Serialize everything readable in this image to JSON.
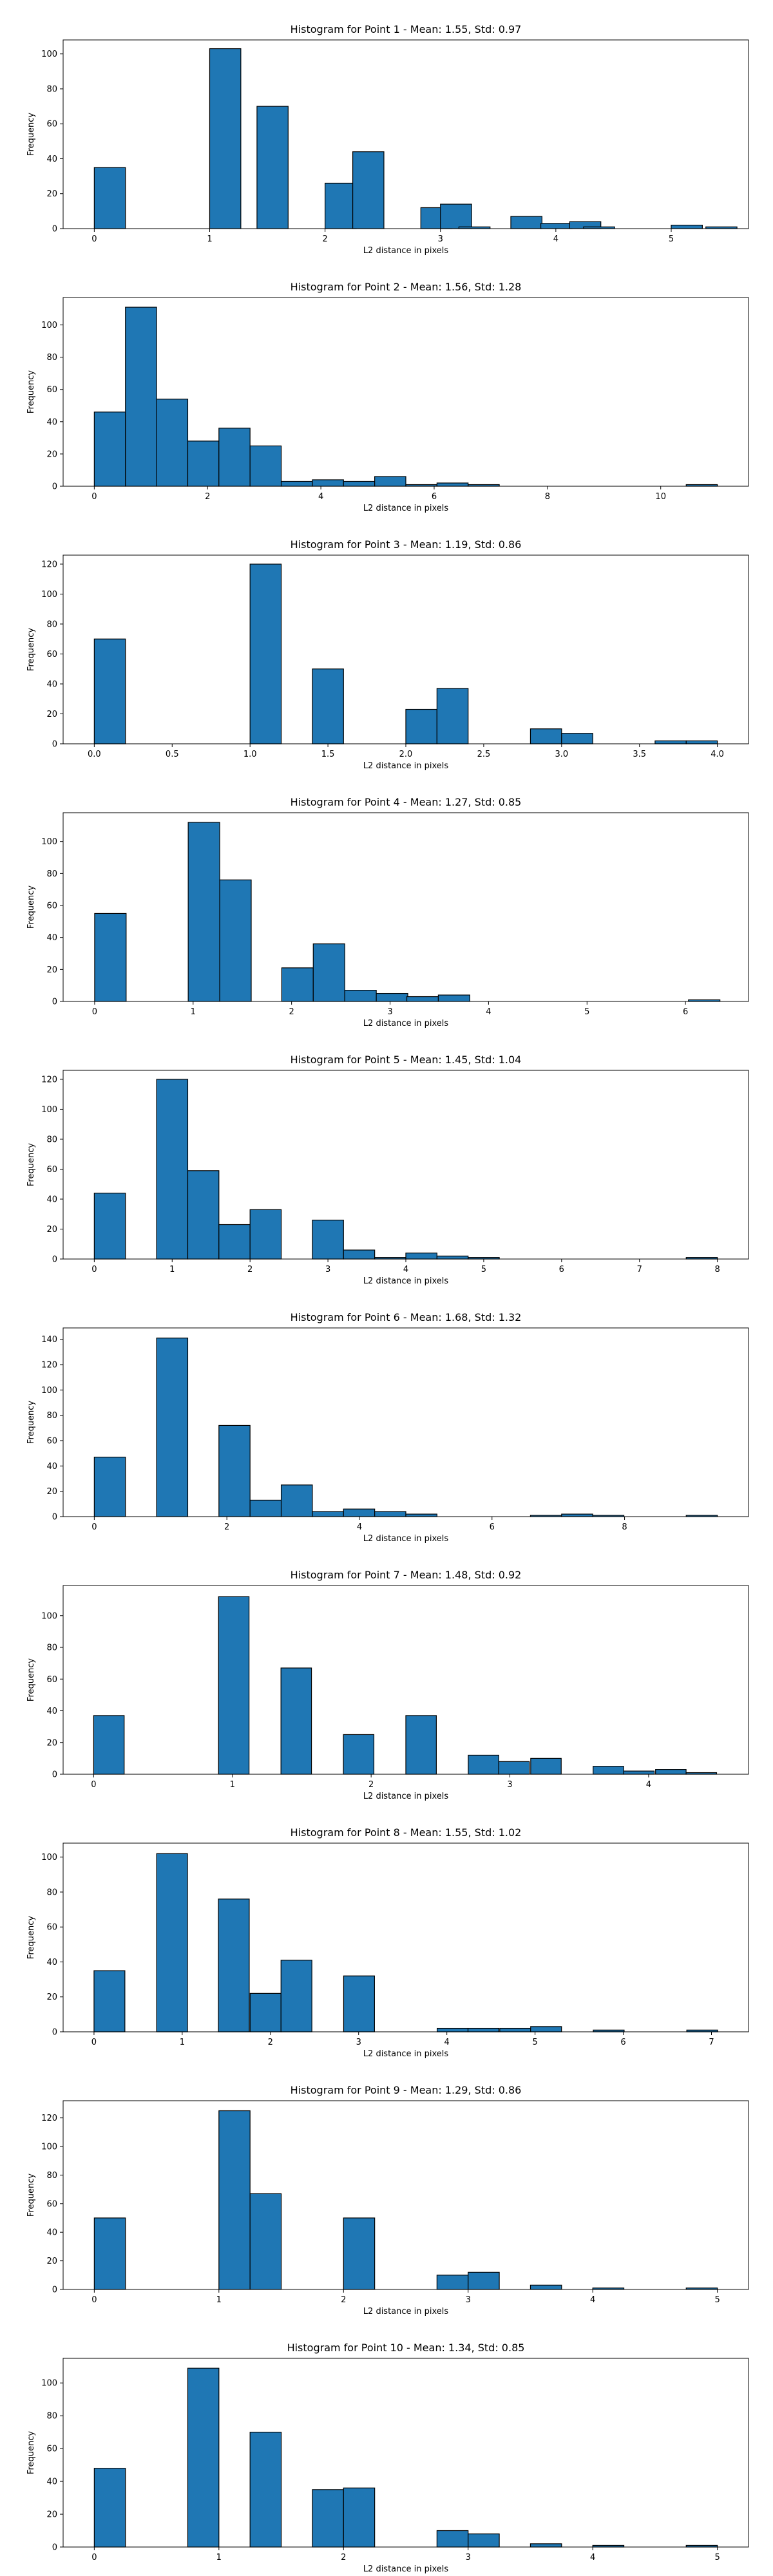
{
  "chart_data": [
    {
      "type": "bar",
      "title": "Histogram for Point 1 - Mean: 1.55, Std: 0.97",
      "xlabel": "L2 distance in pixels",
      "ylabel": "Frequency",
      "xlim": [
        -0.27,
        5.67
      ],
      "ylim": [
        0,
        108
      ],
      "xticks": [
        0,
        1,
        2,
        3,
        4,
        5
      ],
      "yticks": [
        0,
        20,
        40,
        60,
        80,
        100
      ],
      "bin_width": 0.27,
      "bins": [
        [
          0,
          35
        ],
        [
          1,
          103
        ],
        [
          1.41,
          70
        ],
        [
          2,
          26
        ],
        [
          2.24,
          44
        ],
        [
          2.83,
          12
        ],
        [
          3,
          14
        ],
        [
          3.16,
          1
        ],
        [
          3.61,
          7
        ],
        [
          3.87,
          3
        ],
        [
          4.12,
          4
        ],
        [
          4.24,
          1
        ],
        [
          5,
          2
        ],
        [
          5.3,
          1
        ]
      ]
    },
    {
      "type": "bar",
      "title": "Histogram for Point 2 - Mean: 1.56, Std: 1.28",
      "xlabel": "L2 distance in pixels",
      "ylabel": "Frequency",
      "xlim": [
        -0.55,
        11.55
      ],
      "ylim": [
        0,
        117
      ],
      "xticks": [
        0,
        2,
        4,
        6,
        8,
        10
      ],
      "yticks": [
        0,
        20,
        40,
        60,
        80,
        100
      ],
      "bin_width": 0.55,
      "bins": [
        [
          0,
          46
        ],
        [
          0.55,
          111
        ],
        [
          1.1,
          54
        ],
        [
          1.65,
          28
        ],
        [
          2.2,
          36
        ],
        [
          2.75,
          25
        ],
        [
          3.3,
          3
        ],
        [
          3.85,
          4
        ],
        [
          4.4,
          3
        ],
        [
          4.95,
          6
        ],
        [
          5.5,
          1
        ],
        [
          6.05,
          2
        ],
        [
          6.6,
          1
        ],
        [
          10.45,
          1
        ]
      ]
    },
    {
      "type": "bar",
      "title": "Histogram for Point 3 - Mean: 1.19, Std: 0.86",
      "xlabel": "L2 distance in pixels",
      "ylabel": "Frequency",
      "xlim": [
        -0.2,
        4.2
      ],
      "ylim": [
        0,
        126
      ],
      "xticks": [
        0.0,
        0.5,
        1.0,
        1.5,
        2.0,
        2.5,
        3.0,
        3.5,
        4.0
      ],
      "yticks": [
        0,
        20,
        40,
        60,
        80,
        100,
        120
      ],
      "xtick_format": "1f",
      "bin_width": 0.2,
      "bins": [
        [
          0,
          70
        ],
        [
          1,
          120
        ],
        [
          1.4,
          50
        ],
        [
          2,
          23
        ],
        [
          2.2,
          37
        ],
        [
          2.8,
          10
        ],
        [
          3,
          7
        ],
        [
          3.6,
          2
        ],
        [
          3.8,
          2
        ]
      ]
    },
    {
      "type": "bar",
      "title": "Histogram for Point 4 - Mean: 1.27, Std: 0.85",
      "xlabel": "L2 distance in pixels",
      "ylabel": "Frequency",
      "xlim": [
        -0.32,
        6.64
      ],
      "ylim": [
        0,
        118
      ],
      "xticks": [
        0,
        1,
        2,
        3,
        4,
        5,
        6
      ],
      "yticks": [
        0,
        20,
        40,
        60,
        80,
        100
      ],
      "bin_width": 0.32,
      "bins": [
        [
          0,
          55
        ],
        [
          0.95,
          112
        ],
        [
          1.27,
          76
        ],
        [
          1.9,
          21
        ],
        [
          2.22,
          36
        ],
        [
          2.54,
          7
        ],
        [
          2.86,
          5
        ],
        [
          3.17,
          3
        ],
        [
          3.49,
          4
        ],
        [
          6.03,
          1
        ]
      ]
    },
    {
      "type": "bar",
      "title": "Histogram for Point 5 - Mean: 1.45, Std: 1.04",
      "xlabel": "L2 distance in pixels",
      "ylabel": "Frequency",
      "xlim": [
        -0.4,
        8.4
      ],
      "ylim": [
        0,
        126
      ],
      "xticks": [
        0,
        1,
        2,
        3,
        4,
        5,
        6,
        7,
        8
      ],
      "yticks": [
        0,
        20,
        40,
        60,
        80,
        100,
        120
      ],
      "bin_width": 0.4,
      "bins": [
        [
          0,
          44
        ],
        [
          0.8,
          120
        ],
        [
          1.2,
          59
        ],
        [
          1.6,
          23
        ],
        [
          2,
          33
        ],
        [
          2.8,
          26
        ],
        [
          3.2,
          6
        ],
        [
          3.6,
          1
        ],
        [
          4,
          4
        ],
        [
          4.4,
          2
        ],
        [
          4.8,
          1
        ],
        [
          7.6,
          1
        ]
      ]
    },
    {
      "type": "bar",
      "title": "Histogram for Point 6 - Mean: 1.68, Std: 1.32",
      "xlabel": "L2 distance in pixels",
      "ylabel": "Frequency",
      "xlim": [
        -0.47,
        9.87
      ],
      "ylim": [
        0,
        149
      ],
      "xticks": [
        0,
        2,
        4,
        6,
        8
      ],
      "yticks": [
        0,
        20,
        40,
        60,
        80,
        100,
        120,
        140
      ],
      "bin_width": 0.47,
      "bins": [
        [
          0,
          47
        ],
        [
          0.94,
          141
        ],
        [
          1.88,
          72
        ],
        [
          2.35,
          13
        ],
        [
          2.82,
          25
        ],
        [
          3.29,
          4
        ],
        [
          3.76,
          6
        ],
        [
          4.23,
          4
        ],
        [
          4.7,
          2
        ],
        [
          6.58,
          1
        ],
        [
          7.05,
          2
        ],
        [
          7.52,
          1
        ],
        [
          8.93,
          1
        ]
      ]
    },
    {
      "type": "bar",
      "title": "Histogram for Point 7 - Mean: 1.48, Std: 0.92",
      "xlabel": "L2 distance in pixels",
      "ylabel": "Frequency",
      "xlim": [
        -0.22,
        4.72
      ],
      "ylim": [
        0,
        119
      ],
      "xticks": [
        0,
        1,
        2,
        3,
        4
      ],
      "yticks": [
        0,
        20,
        40,
        60,
        80,
        100
      ],
      "bin_width": 0.22,
      "bins": [
        [
          0,
          37
        ],
        [
          0.9,
          112
        ],
        [
          1.35,
          67
        ],
        [
          1.8,
          25
        ],
        [
          2.25,
          37
        ],
        [
          2.7,
          12
        ],
        [
          2.92,
          8
        ],
        [
          3.15,
          10
        ],
        [
          3.6,
          5
        ],
        [
          3.82,
          2
        ],
        [
          4.05,
          3
        ],
        [
          4.27,
          1
        ]
      ]
    },
    {
      "type": "bar",
      "title": "Histogram for Point 8 - Mean: 1.55, Std: 1.02",
      "xlabel": "L2 distance in pixels",
      "ylabel": "Frequency",
      "xlim": [
        -0.35,
        7.42
      ],
      "ylim": [
        0,
        108
      ],
      "xticks": [
        0,
        1,
        2,
        3,
        4,
        5,
        6,
        7
      ],
      "yticks": [
        0,
        20,
        40,
        60,
        80,
        100
      ],
      "bin_width": 0.35,
      "bins": [
        [
          0,
          35
        ],
        [
          0.71,
          102
        ],
        [
          1.41,
          76
        ],
        [
          1.77,
          22
        ],
        [
          2.12,
          41
        ],
        [
          2.83,
          32
        ],
        [
          3.89,
          2
        ],
        [
          4.24,
          2
        ],
        [
          4.6,
          2
        ],
        [
          4.95,
          3
        ],
        [
          5.66,
          1
        ],
        [
          6.72,
          1
        ]
      ]
    },
    {
      "type": "bar",
      "title": "Histogram for Point 9 - Mean: 1.29, Std: 0.86",
      "xlabel": "L2 distance in pixels",
      "ylabel": "Frequency",
      "xlim": [
        -0.25,
        5.25
      ],
      "ylim": [
        0,
        132
      ],
      "xticks": [
        0,
        1,
        2,
        3,
        4,
        5
      ],
      "yticks": [
        0,
        20,
        40,
        60,
        80,
        100,
        120
      ],
      "bin_width": 0.25,
      "bins": [
        [
          0,
          50
        ],
        [
          1,
          125
        ],
        [
          1.25,
          67
        ],
        [
          2,
          50
        ],
        [
          2.75,
          10
        ],
        [
          3,
          12
        ],
        [
          3.5,
          3
        ],
        [
          4,
          1
        ],
        [
          4.75,
          1
        ]
      ]
    },
    {
      "type": "bar",
      "title": "Histogram for Point 10 - Mean: 1.34, Std: 0.85",
      "xlabel": "L2 distance in pixels",
      "ylabel": "Frequency",
      "xlim": [
        -0.25,
        5.25
      ],
      "ylim": [
        0,
        115
      ],
      "xticks": [
        0,
        1,
        2,
        3,
        4,
        5
      ],
      "yticks": [
        0,
        20,
        40,
        60,
        80,
        100
      ],
      "bin_width": 0.25,
      "bins": [
        [
          0,
          48
        ],
        [
          0.75,
          109
        ],
        [
          1.25,
          70
        ],
        [
          1.75,
          35
        ],
        [
          2,
          36
        ],
        [
          2.75,
          10
        ],
        [
          3,
          8
        ],
        [
          3.5,
          2
        ],
        [
          4,
          1
        ],
        [
          4.75,
          1
        ]
      ]
    }
  ],
  "colors": {
    "bar_fill": "#1f77b4",
    "bar_edge": "#000000"
  }
}
